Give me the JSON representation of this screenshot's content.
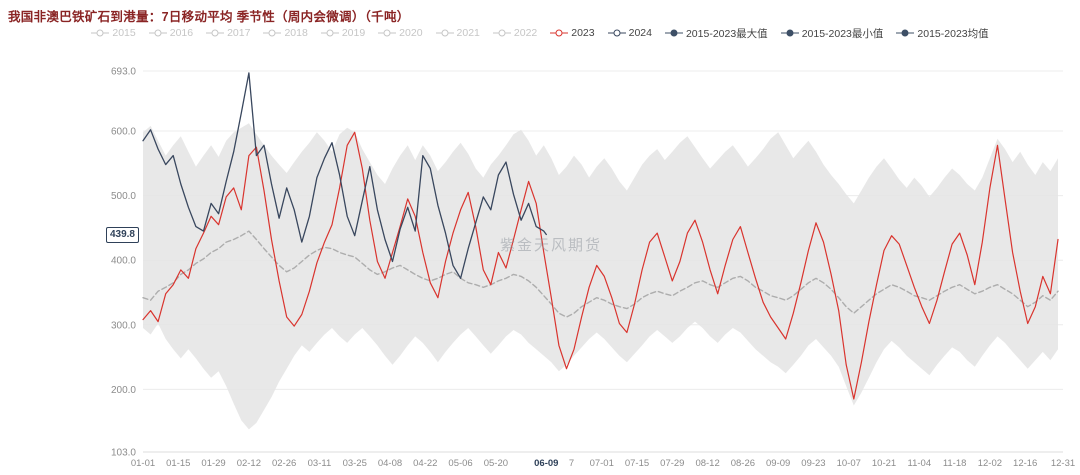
{
  "title": "我国非澳巴铁矿石到港量：7日移动平均 季节性（周内会微调）（千吨）",
  "watermark": "紫金天风期货",
  "colors": {
    "title": "#8a2424",
    "axis_label": "#8c8c8c",
    "bold_tick": "#2f4159",
    "grid": "#ececec",
    "red_2023": "#d9342e",
    "navy_2024": "#39475e",
    "band": "#e4e4e4",
    "mean_line": "#adadad",
    "legend_inactive": "#c6c6c6"
  },
  "legend": {
    "inactive_color": "#c6c6c6",
    "items": [
      {
        "label": "2015",
        "active": false,
        "color": "#c6c6c6",
        "fill": false
      },
      {
        "label": "2016",
        "active": false,
        "color": "#c6c6c6",
        "fill": false
      },
      {
        "label": "2017",
        "active": false,
        "color": "#c6c6c6",
        "fill": false
      },
      {
        "label": "2018",
        "active": false,
        "color": "#c6c6c6",
        "fill": false
      },
      {
        "label": "2019",
        "active": false,
        "color": "#c6c6c6",
        "fill": false
      },
      {
        "label": "2020",
        "active": false,
        "color": "#c6c6c6",
        "fill": false
      },
      {
        "label": "2021",
        "active": false,
        "color": "#c6c6c6",
        "fill": false
      },
      {
        "label": "2022",
        "active": false,
        "color": "#c6c6c6",
        "fill": false
      },
      {
        "label": "2023",
        "active": true,
        "color": "#d9342e",
        "fill": false
      },
      {
        "label": "2024",
        "active": true,
        "color": "#39475e",
        "fill": false
      },
      {
        "label": "2015-2023最大值",
        "active": true,
        "color": "#3d4f66",
        "fill": true
      },
      {
        "label": "2015-2023最小值",
        "active": true,
        "color": "#3d4f66",
        "fill": true
      },
      {
        "label": "2015-2023均值",
        "active": true,
        "color": "#3d4f66",
        "fill": true
      }
    ]
  },
  "chart_data": {
    "type": "line",
    "title": "我国非澳巴铁矿石到港量：7日移动平均 季节性（周内会微调）（千吨）",
    "xlabel": "",
    "ylabel": "",
    "x_unit": "day_of_year",
    "xlim": [
      0,
      365
    ],
    "ylim": [
      103,
      693
    ],
    "grid": true,
    "legend_position": "top",
    "y_ticks": [
      103,
      200,
      300,
      400,
      500,
      600,
      693
    ],
    "x_ticks": [
      {
        "label": "01-01",
        "day": 0
      },
      {
        "label": "01-15",
        "day": 14
      },
      {
        "label": "01-29",
        "day": 28
      },
      {
        "label": "02-12",
        "day": 42
      },
      {
        "label": "02-26",
        "day": 56
      },
      {
        "label": "03-11",
        "day": 70
      },
      {
        "label": "03-25",
        "day": 84
      },
      {
        "label": "04-08",
        "day": 98
      },
      {
        "label": "04-22",
        "day": 112
      },
      {
        "label": "05-06",
        "day": 126
      },
      {
        "label": "05-20",
        "day": 140
      },
      {
        "label": "06-09",
        "day": 160,
        "bold": true
      },
      {
        "label": "7",
        "day": 170
      },
      {
        "label": "07-01",
        "day": 182
      },
      {
        "label": "07-15",
        "day": 196
      },
      {
        "label": "07-29",
        "day": 210
      },
      {
        "label": "08-12",
        "day": 224
      },
      {
        "label": "08-26",
        "day": 238
      },
      {
        "label": "09-09",
        "day": 252
      },
      {
        "label": "09-23",
        "day": 266
      },
      {
        "label": "10-07",
        "day": 280
      },
      {
        "label": "10-21",
        "day": 294
      },
      {
        "label": "11-04",
        "day": 308
      },
      {
        "label": "11-18",
        "day": 322
      },
      {
        "label": "12-02",
        "day": 336
      },
      {
        "label": "12-16",
        "day": 350
      },
      {
        "label": "12-31",
        "day": 365
      }
    ],
    "current_marker": {
      "series": "2024",
      "label": "439.8",
      "value": 439.8,
      "day": 160
    },
    "band": {
      "name": "2015-2023最大值/最小值区间",
      "color": "#e4e4e4",
      "x_start": 0,
      "x_step": 3,
      "max": [
        598,
        608,
        585,
        562,
        578,
        592,
        568,
        545,
        562,
        578,
        560,
        585,
        598,
        605,
        612,
        595,
        578,
        562,
        548,
        535,
        552,
        568,
        582,
        598,
        585,
        568,
        595,
        605,
        598,
        572,
        552,
        532,
        518,
        542,
        562,
        578,
        555,
        578,
        562,
        538,
        552,
        568,
        582,
        565,
        542,
        528,
        548,
        562,
        578,
        595,
        602,
        585,
        562,
        578,
        558,
        532,
        545,
        562,
        548,
        528,
        545,
        558,
        542,
        522,
        508,
        528,
        548,
        562,
        572,
        555,
        568,
        582,
        592,
        575,
        558,
        542,
        555,
        568,
        578,
        562,
        545,
        558,
        572,
        588,
        598,
        578,
        558,
        572,
        585,
        568,
        548,
        532,
        518,
        502,
        488,
        508,
        528,
        545,
        558,
        542,
        525,
        512,
        528,
        515,
        498,
        512,
        528,
        542,
        532,
        518,
        508,
        528,
        558,
        588,
        572,
        552,
        568,
        548,
        532,
        552,
        538,
        558
      ],
      "min": [
        295,
        285,
        302,
        278,
        262,
        248,
        262,
        248,
        232,
        218,
        228,
        205,
        178,
        152,
        138,
        148,
        168,
        188,
        212,
        232,
        252,
        268,
        258,
        272,
        285,
        295,
        282,
        272,
        285,
        295,
        282,
        268,
        252,
        238,
        252,
        268,
        282,
        272,
        258,
        242,
        258,
        272,
        285,
        295,
        282,
        268,
        255,
        268,
        282,
        292,
        285,
        272,
        262,
        252,
        242,
        228,
        238,
        252,
        265,
        278,
        288,
        278,
        265,
        252,
        242,
        255,
        268,
        282,
        292,
        282,
        272,
        282,
        295,
        305,
        295,
        282,
        272,
        285,
        295,
        288,
        275,
        262,
        252,
        242,
        235,
        225,
        238,
        252,
        268,
        278,
        265,
        252,
        235,
        205,
        175,
        195,
        218,
        242,
        262,
        275,
        265,
        252,
        242,
        232,
        222,
        238,
        252,
        265,
        258,
        245,
        235,
        252,
        268,
        282,
        272,
        258,
        245,
        232,
        245,
        258,
        245,
        262
      ]
    },
    "series": [
      {
        "name": "2015-2023均值",
        "color": "#adadad",
        "dash": "5 3",
        "width": 1.4,
        "x_start": 0,
        "x_step": 3,
        "values": [
          342,
          338,
          352,
          358,
          365,
          378,
          385,
          395,
          402,
          412,
          418,
          428,
          432,
          438,
          445,
          432,
          418,
          405,
          392,
          382,
          388,
          398,
          408,
          415,
          420,
          418,
          412,
          408,
          405,
          395,
          385,
          378,
          382,
          388,
          392,
          385,
          378,
          372,
          368,
          372,
          378,
          382,
          372,
          365,
          362,
          358,
          362,
          368,
          372,
          378,
          375,
          368,
          358,
          345,
          332,
          318,
          312,
          318,
          328,
          335,
          342,
          338,
          332,
          328,
          325,
          332,
          342,
          348,
          352,
          348,
          345,
          352,
          358,
          365,
          368,
          362,
          358,
          365,
          372,
          375,
          368,
          358,
          352,
          345,
          342,
          338,
          345,
          355,
          365,
          372,
          365,
          355,
          342,
          328,
          318,
          328,
          338,
          348,
          355,
          362,
          358,
          352,
          345,
          342,
          338,
          345,
          352,
          358,
          362,
          355,
          348,
          352,
          358,
          362,
          355,
          348,
          338,
          328,
          335,
          345,
          338,
          352
        ]
      },
      {
        "name": "2023",
        "color": "#d9342e",
        "dash": "none",
        "width": 1.2,
        "x_start": 0,
        "x_step": 3,
        "values": [
          308,
          322,
          305,
          348,
          362,
          385,
          372,
          418,
          442,
          468,
          455,
          498,
          512,
          478,
          562,
          575,
          508,
          432,
          368,
          312,
          298,
          316,
          352,
          396,
          428,
          455,
          512,
          578,
          598,
          542,
          462,
          398,
          372,
          412,
          452,
          495,
          468,
          412,
          365,
          342,
          398,
          442,
          478,
          505,
          452,
          385,
          362,
          412,
          388,
          432,
          478,
          522,
          488,
          412,
          342,
          268,
          232,
          262,
          312,
          358,
          392,
          375,
          342,
          302,
          288,
          332,
          385,
          428,
          442,
          405,
          368,
          398,
          442,
          462,
          428,
          385,
          348,
          392,
          432,
          452,
          412,
          372,
          335,
          312,
          295,
          278,
          318,
          365,
          415,
          458,
          428,
          378,
          322,
          238,
          185,
          242,
          305,
          362,
          415,
          438,
          425,
          392,
          358,
          328,
          302,
          338,
          382,
          425,
          442,
          408,
          362,
          428,
          512,
          578,
          495,
          412,
          352,
          302,
          328,
          375,
          348,
          432
        ]
      },
      {
        "name": "2024",
        "color": "#39475e",
        "dash": "none",
        "width": 1.3,
        "x_start": 0,
        "x_step": 3,
        "values": [
          585,
          602,
          572,
          548,
          562,
          518,
          482,
          452,
          445,
          488,
          472,
          522,
          568,
          628,
          690,
          562,
          578,
          518,
          465,
          512,
          478,
          428,
          468,
          528,
          558,
          582,
          532,
          468,
          438,
          492,
          545,
          478,
          432,
          398,
          448,
          482,
          445,
          562,
          542,
          485,
          442,
          392,
          372,
          418,
          458,
          498,
          478,
          532,
          552,
          502,
          462,
          488,
          452,
          445
        ]
      }
    ]
  }
}
